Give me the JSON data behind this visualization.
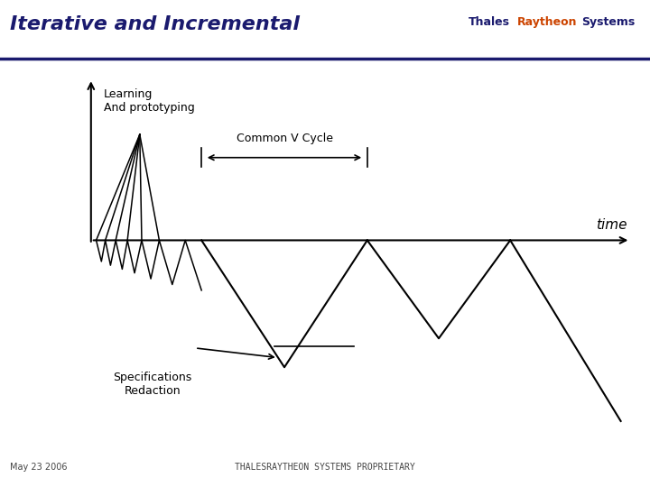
{
  "title": "Iterative and Incremental",
  "title_color": "#1a1a6e",
  "title_fontsize": 16,
  "title_fontstyle": "italic",
  "title_fontweight": "bold",
  "bg_color": "#ffffff",
  "header_line_color": "#1a1a6e",
  "footer_text_left": "May 23 2006",
  "footer_text_center": "THALESRAYTHEON SYSTEMS PROPRIETARY",
  "time_label": "time",
  "learning_label": "Learning\nAnd prototyping",
  "common_v_label": "Common V Cycle",
  "spec_label": "Specifications\nRedaction",
  "line_color": "#000000",
  "logo_thales": "Thales",
  "logo_raytheon": "Raytheon",
  "logo_systems": "Systems"
}
